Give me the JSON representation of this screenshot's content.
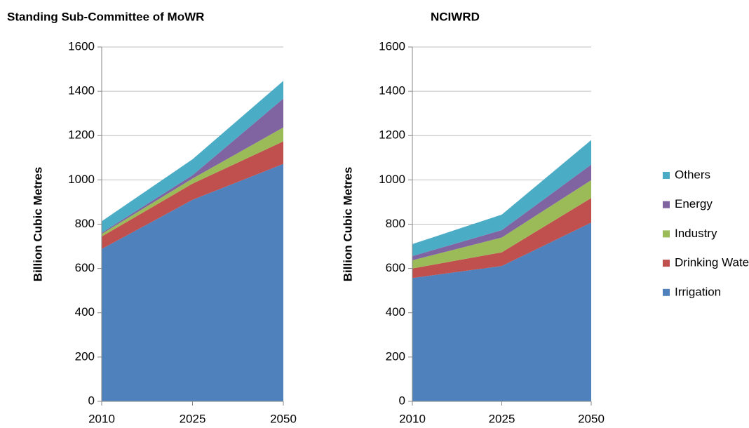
{
  "chart_data": [
    {
      "type": "area",
      "title": "Standing Sub-Committee of MoWR",
      "y_label": "Billion Cubic Metres",
      "categories": [
        "2010",
        "2025",
        "2050"
      ],
      "series": [
        {
          "name": "Irrigation",
          "color": "#4f81bd",
          "values": [
            688,
            910,
            1072
          ]
        },
        {
          "name": "Drinking Water",
          "color": "#c0504d",
          "values": [
            56,
            73,
            102
          ]
        },
        {
          "name": "Industry",
          "color": "#9bbb59",
          "values": [
            12,
            23,
            63
          ]
        },
        {
          "name": "Energy",
          "color": "#8064a2",
          "values": [
            5,
            15,
            130
          ]
        },
        {
          "name": "Others",
          "color": "#4bacc6",
          "values": [
            52,
            72,
            80
          ]
        }
      ],
      "ylim": [
        0,
        1600
      ],
      "yticks": [
        0,
        200,
        400,
        600,
        800,
        1000,
        1200,
        1400,
        1600
      ],
      "grid": true,
      "legend": "right"
    },
    {
      "type": "area",
      "title": "NCIWRD",
      "y_label": "Billion Cubic Metres",
      "categories": [
        "2010",
        "2025",
        "2050"
      ],
      "series": [
        {
          "name": "Irrigation",
          "color": "#4f81bd",
          "values": [
            557,
            611,
            807
          ]
        },
        {
          "name": "Drinking Water",
          "color": "#c0504d",
          "values": [
            43,
            62,
            111
          ]
        },
        {
          "name": "Industry",
          "color": "#9bbb59",
          "values": [
            37,
            67,
            81
          ]
        },
        {
          "name": "Energy",
          "color": "#8064a2",
          "values": [
            19,
            33,
            70
          ]
        },
        {
          "name": "Others",
          "color": "#4bacc6",
          "values": [
            54,
            70,
            111
          ]
        }
      ],
      "ylim": [
        0,
        1600
      ],
      "yticks": [
        0,
        200,
        400,
        600,
        800,
        1000,
        1200,
        1400,
        1600
      ],
      "grid": true,
      "legend": "right"
    }
  ]
}
